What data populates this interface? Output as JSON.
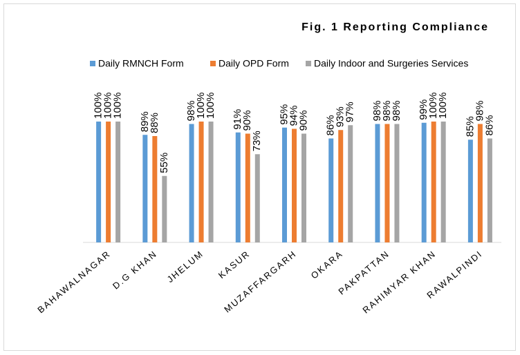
{
  "chart_data": {
    "type": "bar",
    "title": "Fig. 1 Reporting Compliance",
    "categories": [
      "BAHAWALNAGAR",
      "D.G KHAN",
      "JHELUM",
      "KASUR",
      "MUZAFFARGARH",
      "OKARA",
      "PAKPATTAN",
      "RAHIMYAR KHAN",
      "RAWALPINDI"
    ],
    "series": [
      {
        "name": "Daily RMNCH Form",
        "color": "#5b9bd5",
        "values": [
          100,
          89,
          98,
          91,
          95,
          86,
          98,
          99,
          85
        ],
        "value_labels": [
          "100%",
          "89%",
          "98%",
          "91%",
          "95%",
          "86%",
          "98%",
          "99%",
          "85%"
        ]
      },
      {
        "name": "Daily OPD Form",
        "color": "#ed7d31",
        "values": [
          100,
          88,
          100,
          90,
          94,
          93,
          98,
          100,
          98
        ],
        "value_labels": [
          "100%",
          "88%",
          "100%",
          "90%",
          "94%",
          "93%",
          "98%",
          "100%",
          "98%"
        ]
      },
      {
        "name": "Daily Indoor and Surgeries Services",
        "color": "#a5a5a5",
        "values": [
          100,
          55,
          100,
          73,
          90,
          97,
          98,
          100,
          86
        ],
        "value_labels": [
          "100%",
          "55%",
          "100%",
          "73%",
          "90%",
          "97%",
          "98%",
          "100%",
          "86%"
        ]
      }
    ],
    "ylim": [
      0,
      120
    ]
  }
}
